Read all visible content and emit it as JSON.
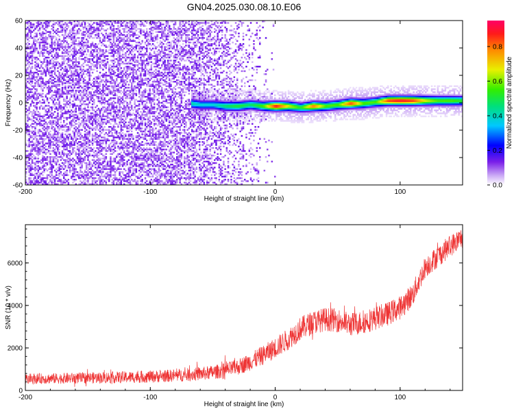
{
  "title": "GN04.2025.030.08.10.E06",
  "chart_data": [
    {
      "type": "heatmap",
      "xlabel": "Height of straight line (km)",
      "ylabel": "Frequency (Hz)",
      "xlim": [
        -200,
        150
      ],
      "ylim": [
        -60,
        60
      ],
      "xticks": [
        -200,
        -100,
        0,
        100
      ],
      "yticks": [
        -60,
        -40,
        -20,
        0,
        20,
        40,
        60
      ],
      "colorbar": {
        "label": "Normalized spectral amplitude",
        "range": [
          0.0,
          0.95
        ],
        "ticks": [
          0.0,
          0.2,
          0.4,
          0.6,
          0.8
        ]
      },
      "ridge": {
        "x": [
          -68,
          -60,
          -50,
          -40,
          -30,
          -20,
          -10,
          0,
          10,
          20,
          30,
          40,
          50,
          60,
          70,
          80,
          90,
          100,
          110,
          120,
          130,
          140,
          150
        ],
        "freq": [
          0,
          -1,
          -1,
          -2,
          -2,
          -1,
          -2,
          -2,
          -2,
          -3,
          -2,
          -2,
          -1,
          0,
          0,
          1,
          2,
          2,
          2,
          2,
          2,
          2,
          2
        ],
        "amplitude": [
          0.45,
          0.4,
          0.4,
          0.5,
          0.55,
          0.5,
          0.6,
          0.95,
          0.7,
          0.55,
          0.85,
          0.6,
          0.6,
          0.9,
          0.6,
          0.6,
          0.9,
          0.95,
          0.9,
          0.7,
          0.6,
          0.6,
          0.55
        ]
      },
      "noise_region_x": [
        -200,
        -70
      ],
      "noise_level": 0.1
    },
    {
      "type": "line",
      "xlabel": "Height of straight line (km)",
      "ylabel": "SNR (10 * v/v)",
      "xlim": [
        -200,
        150
      ],
      "ylim": [
        0,
        7800
      ],
      "xticks": [
        -200,
        -100,
        0,
        100
      ],
      "yticks": [
        0,
        2000,
        4000,
        6000
      ],
      "color": "#ee3333",
      "x": [
        -200,
        -180,
        -160,
        -140,
        -120,
        -100,
        -80,
        -60,
        -50,
        -40,
        -30,
        -20,
        -10,
        0,
        10,
        20,
        30,
        40,
        50,
        60,
        70,
        80,
        90,
        100,
        110,
        120,
        130,
        140,
        150
      ],
      "y": [
        550,
        560,
        580,
        600,
        620,
        650,
        700,
        780,
        850,
        950,
        1100,
        1350,
        1650,
        2000,
        2400,
        2900,
        3200,
        3350,
        3300,
        3100,
        3200,
        3400,
        3600,
        3900,
        4500,
        5800,
        6300,
        6800,
        7200
      ],
      "noise_amplitude": [
        250,
        250,
        260,
        270,
        280,
        290,
        300,
        320,
        330,
        350,
        380,
        420,
        460,
        500,
        520,
        560,
        560,
        560,
        560,
        560,
        560,
        560,
        560,
        560,
        560,
        520,
        520,
        520,
        520
      ]
    }
  ]
}
